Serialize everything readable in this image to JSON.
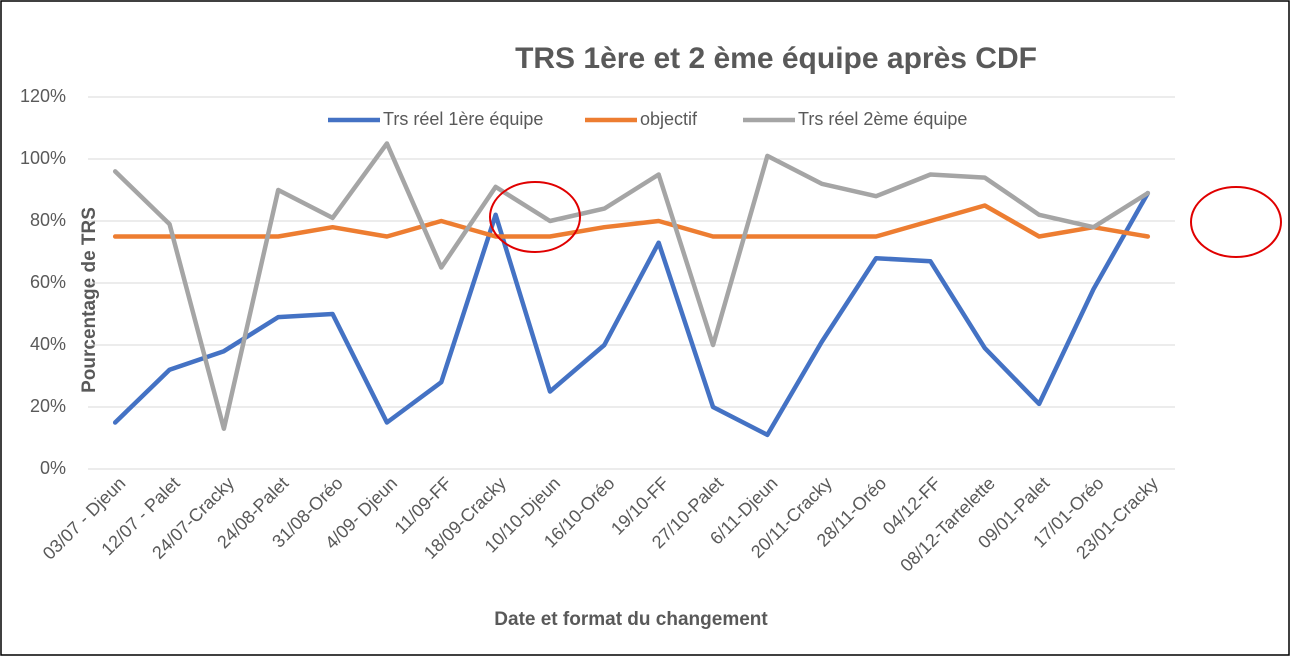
{
  "chart_data": {
    "type": "line",
    "title": "TRS 1ère et 2 ème équipe après CDF",
    "y_label": "Pourcentage de TRS",
    "x_label": "Date et format du changement",
    "categories": [
      "03/07 - Djeun",
      "12/07 - Palet",
      "24/07-Cracky",
      "24/08-Palet",
      "31/08-Oréo",
      "4/09- Djeun",
      "11/09-FF",
      "18/09-Cracky",
      "10/10-Djeun",
      "16/10-Oréo",
      "19/10-FF",
      "27/10-Palet",
      "6/11-Djeun",
      "20/11-Cracky",
      "28/11-Oréo",
      "04/12-FF",
      "08/12-Tartelette",
      "09/01-Palet",
      "17/01-Oréo",
      "23/01-Cracky"
    ],
    "series": [
      {
        "name": "Trs réel 1ère équipe",
        "color": "#4472c4",
        "values": [
          15,
          32,
          38,
          49,
          50,
          15,
          28,
          82,
          25,
          40,
          73,
          20,
          11,
          41,
          68,
          67,
          39,
          21,
          58,
          89
        ]
      },
      {
        "name": "objectif",
        "color": "#ed7d31",
        "values": [
          75,
          75,
          75,
          75,
          78,
          75,
          80,
          75,
          75,
          78,
          80,
          75,
          75,
          75,
          75,
          80,
          85,
          75,
          78,
          75
        ]
      },
      {
        "name": "Trs réel 2ème équipe",
        "color": "#a5a5a5",
        "values": [
          96,
          79,
          13,
          90,
          81,
          105,
          65,
          91,
          80,
          84,
          95,
          40,
          101,
          92,
          88,
          95,
          94,
          82,
          78,
          89
        ]
      }
    ],
    "ylim": [
      0,
      120
    ],
    "yticks": [
      {
        "value": 0,
        "label": "0%"
      },
      {
        "value": 20,
        "label": "20%"
      },
      {
        "value": 40,
        "label": "40%"
      },
      {
        "value": 60,
        "label": "60%"
      },
      {
        "value": 80,
        "label": "80%"
      },
      {
        "value": 100,
        "label": "100%"
      },
      {
        "value": 120,
        "label": "120%"
      }
    ],
    "grid": true,
    "legend": "top"
  }
}
